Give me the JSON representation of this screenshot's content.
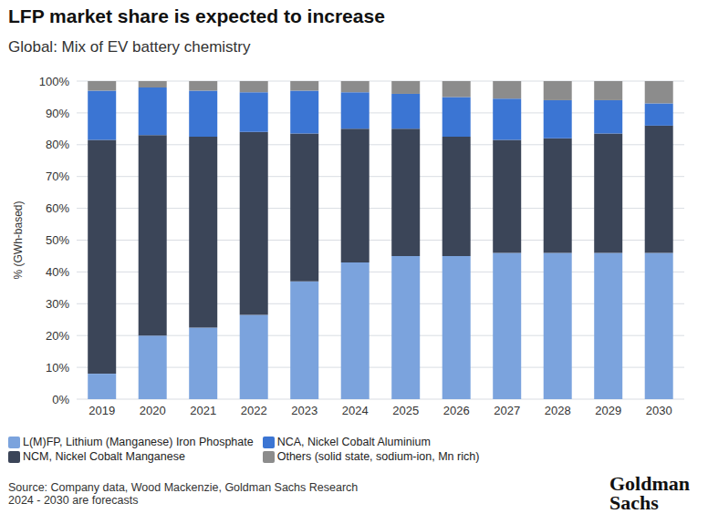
{
  "chart_data": {
    "type": "bar",
    "title": "LFP market share is expected to increase",
    "subtitle": "Global: Mix of EV battery chemistry",
    "y_label": "% (GWh-based)",
    "categories": [
      "2019",
      "2020",
      "2021",
      "2022",
      "2023",
      "2024",
      "2025",
      "2026",
      "2027",
      "2028",
      "2029",
      "2030"
    ],
    "series": [
      {
        "name": "L(M)FP, Lithium (Manganese) Iron Phosphate",
        "color": "#7ba3dd",
        "values": [
          8,
          20,
          22.5,
          26.5,
          37,
          43,
          45,
          45,
          46,
          46,
          46,
          46
        ]
      },
      {
        "name": "NCM, Nickel Cobalt Manganese",
        "color": "#3b4558",
        "values": [
          73.5,
          63,
          60,
          57.5,
          46.5,
          42,
          40,
          37.5,
          35.5,
          36,
          37.5,
          40
        ]
      },
      {
        "name": "NCA, Nickel Cobalt Aluminium",
        "color": "#3b75d3",
        "values": [
          15.5,
          15,
          14.5,
          12.5,
          13.5,
          11.5,
          11,
          12.5,
          13,
          12,
          10.5,
          7
        ]
      },
      {
        "name": "Others (solid state, sodium-ion, Mn rich)",
        "color": "#8c8c8c",
        "values": [
          3,
          2,
          3,
          3.5,
          3,
          3.5,
          4,
          5,
          5.5,
          6,
          6,
          7
        ]
      }
    ],
    "ylim": [
      0,
      100
    ],
    "yticks": [
      {
        "value": 0,
        "label": "0%"
      },
      {
        "value": 10,
        "label": "10%"
      },
      {
        "value": 20,
        "label": "20%"
      },
      {
        "value": 30,
        "label": "30%"
      },
      {
        "value": 40,
        "label": "40%"
      },
      {
        "value": 50,
        "label": "50%"
      },
      {
        "value": 60,
        "label": "60%"
      },
      {
        "value": 70,
        "label": "70%"
      },
      {
        "value": 80,
        "label": "80%"
      },
      {
        "value": 90,
        "label": "90%"
      },
      {
        "value": 100,
        "label": "100%"
      }
    ],
    "stacked": true,
    "grid": true,
    "legend": "bottom-left",
    "source": "Source: Company data, Wood Mackenzie, Goldman Sachs Research",
    "note": "2024 - 2030 are forecasts",
    "logo": "Goldman Sachs"
  }
}
